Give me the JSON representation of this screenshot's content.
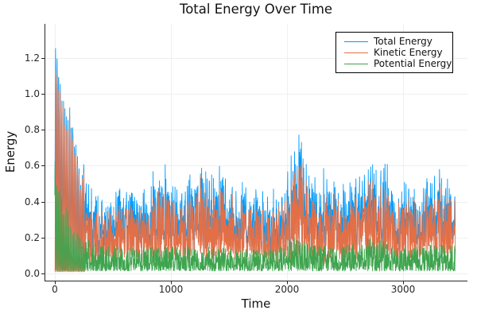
{
  "chart_data": {
    "type": "line",
    "title": "Total Energy Over Time",
    "xlabel": "Time",
    "ylabel": "Energy",
    "xlim": [
      -89,
      3555
    ],
    "ylim": [
      -0.042,
      1.393
    ],
    "x_ticks": {
      "values": [
        0,
        1000,
        2000,
        3000
      ],
      "labels": [
        "0",
        "1000",
        "2000",
        "3000"
      ]
    },
    "y_ticks": {
      "values": [
        0.0,
        0.2,
        0.4,
        0.6,
        0.8,
        1.0,
        1.2
      ],
      "labels": [
        "0.0",
        "0.2",
        "0.4",
        "0.6",
        "0.8",
        "1.0",
        "1.2"
      ]
    },
    "grid": true,
    "grid_color": "#efefef",
    "axis_color": "#262626",
    "tick_label_color": "#262626",
    "background": "#ffffff",
    "legend": {
      "position": "top-right",
      "border_color": "#000000",
      "background": "#ffffff"
    },
    "series": [
      {
        "name": "Total Energy",
        "color": "#009AFA",
        "summary": "Sum of kinetic and potential; oscillatory transient peaking at 1.35 before t=260, then noisy band 0.1-0.5 with bursts to 0.75 near t=2120"
      },
      {
        "name": "Kinetic Energy",
        "color": "#E36F47",
        "summary": "Tracks total energy slightly below it; transient spikes to ~1.3, then dense noise band 0.05-0.45"
      },
      {
        "name": "Potential Energy",
        "color": "#3EA44E",
        "summary": "Early spikes to ~0.7 decaying by t=260, then low noisy band 0.01-0.2 with humps near t=2100 and t=2750"
      }
    ],
    "generation": {
      "seed": 11,
      "n_points": 1750,
      "t_start": 0,
      "t_end": 3450,
      "transient": {
        "until": 258,
        "period": 13.5,
        "pe_phase": 2.2,
        "total_env": [
          [
            0,
            1.32
          ],
          [
            18,
            1.36
          ],
          [
            40,
            1.18
          ],
          [
            65,
            0.98
          ],
          [
            88,
            1.03
          ],
          [
            110,
            0.88
          ],
          [
            132,
            0.93
          ],
          [
            150,
            0.98
          ],
          [
            170,
            0.82
          ],
          [
            192,
            0.7
          ],
          [
            215,
            0.62
          ],
          [
            232,
            0.56
          ],
          [
            246,
            0.78
          ],
          [
            258,
            0.52
          ]
        ],
        "pe_env": [
          [
            0,
            0.7
          ],
          [
            30,
            0.58
          ],
          [
            60,
            0.45
          ],
          [
            90,
            0.38
          ],
          [
            120,
            0.32
          ],
          [
            150,
            0.27
          ],
          [
            180,
            0.23
          ],
          [
            220,
            0.2
          ],
          [
            258,
            0.19
          ]
        ]
      },
      "steady": {
        "total_peak_env": [
          [
            258,
            0.52
          ],
          [
            320,
            0.46
          ],
          [
            420,
            0.43
          ],
          [
            520,
            0.47
          ],
          [
            620,
            0.5
          ],
          [
            700,
            0.44
          ],
          [
            780,
            0.46
          ],
          [
            860,
            0.52
          ],
          [
            930,
            0.6
          ],
          [
            1000,
            0.5
          ],
          [
            1080,
            0.46
          ],
          [
            1160,
            0.52
          ],
          [
            1250,
            0.63
          ],
          [
            1330,
            0.52
          ],
          [
            1400,
            0.59
          ],
          [
            1480,
            0.55
          ],
          [
            1560,
            0.5
          ],
          [
            1650,
            0.46
          ],
          [
            1750,
            0.48
          ],
          [
            1850,
            0.43
          ],
          [
            1950,
            0.5
          ],
          [
            2040,
            0.62
          ],
          [
            2120,
            0.76
          ],
          [
            2200,
            0.58
          ],
          [
            2280,
            0.49
          ],
          [
            2380,
            0.53
          ],
          [
            2480,
            0.46
          ],
          [
            2580,
            0.49
          ],
          [
            2680,
            0.58
          ],
          [
            2760,
            0.63
          ],
          [
            2840,
            0.55
          ],
          [
            2940,
            0.47
          ],
          [
            3040,
            0.51
          ],
          [
            3140,
            0.47
          ],
          [
            3240,
            0.53
          ],
          [
            3330,
            0.57
          ],
          [
            3400,
            0.51
          ],
          [
            3450,
            0.49
          ]
        ],
        "pe_peak_env": [
          [
            258,
            0.2
          ],
          [
            400,
            0.16
          ],
          [
            600,
            0.14
          ],
          [
            800,
            0.145
          ],
          [
            1000,
            0.15
          ],
          [
            1200,
            0.145
          ],
          [
            1400,
            0.15
          ],
          [
            1600,
            0.135
          ],
          [
            1800,
            0.13
          ],
          [
            1950,
            0.16
          ],
          [
            2100,
            0.21
          ],
          [
            2250,
            0.16
          ],
          [
            2450,
            0.145
          ],
          [
            2600,
            0.17
          ],
          [
            2750,
            0.21
          ],
          [
            2900,
            0.15
          ],
          [
            3100,
            0.15
          ],
          [
            3300,
            0.16
          ],
          [
            3450,
            0.15
          ]
        ],
        "ke_floor": 0.055,
        "pe_floor": 0.012,
        "ke_bias": 1.5,
        "pe_bias": 1.55
      }
    }
  }
}
